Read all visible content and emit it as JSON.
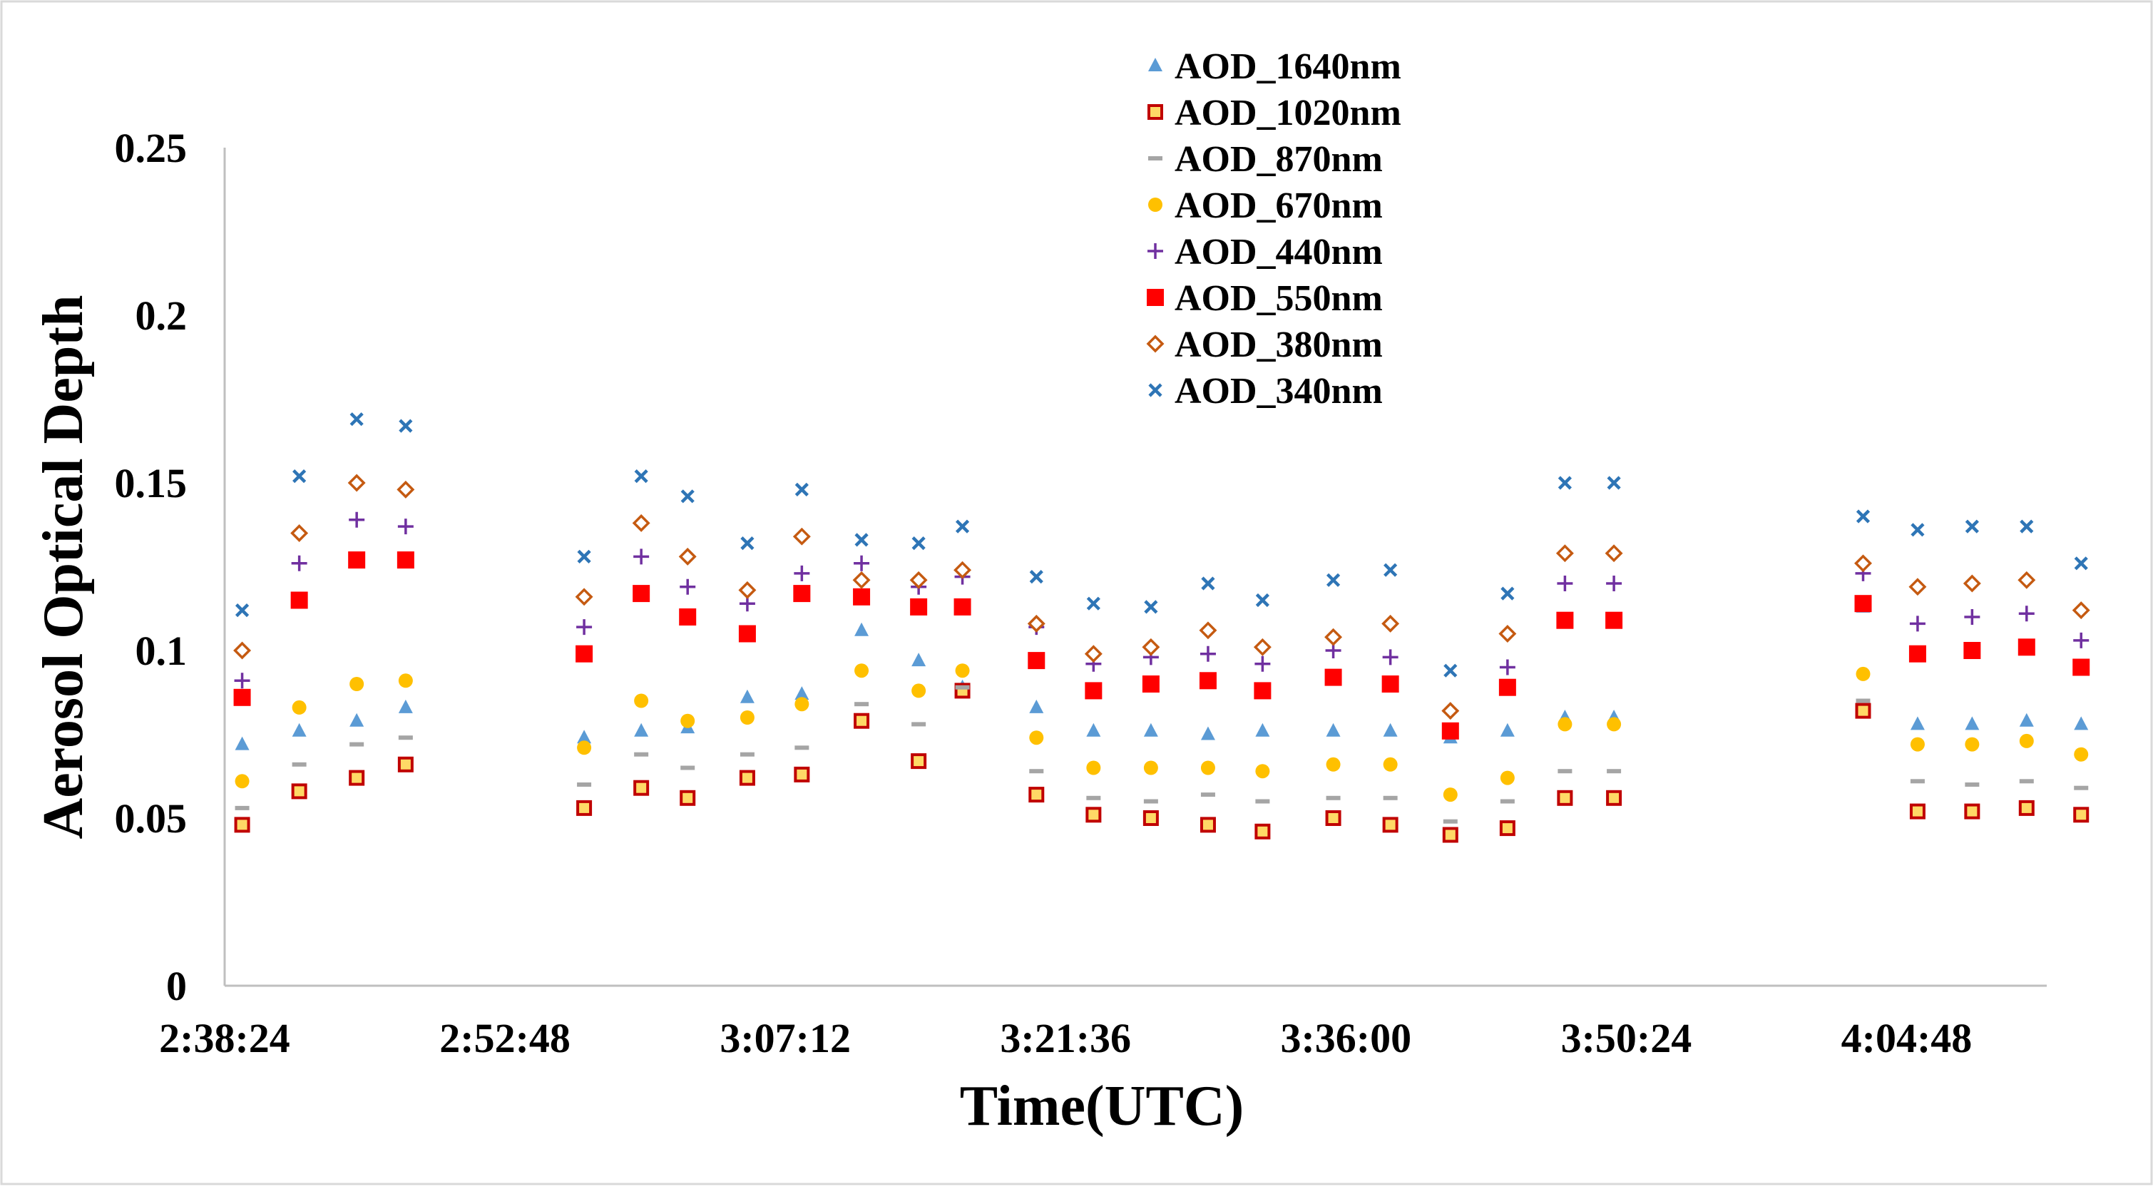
{
  "chart_data": {
    "type": "scatter",
    "title": "",
    "xlabel": "Time(UTC)",
    "ylabel": "Aerosol Optical Depth",
    "x_unit": "seconds_of_day",
    "xlim": [
      9504,
      15120
    ],
    "ylim": [
      0,
      0.25
    ],
    "x_ticks": [
      {
        "value": 9504,
        "label": "2:38:24"
      },
      {
        "value": 10368,
        "label": "2:52:48"
      },
      {
        "value": 11232,
        "label": "3:07:12"
      },
      {
        "value": 12096,
        "label": "3:21:36"
      },
      {
        "value": 12960,
        "label": "3:36:00"
      },
      {
        "value": 13824,
        "label": "3:50:24"
      },
      {
        "value": 14688,
        "label": "4:04:48"
      }
    ],
    "y_ticks": [
      {
        "value": 0,
        "label": "0"
      },
      {
        "value": 0.05,
        "label": "0.05"
      },
      {
        "value": 0.1,
        "label": "0.1"
      },
      {
        "value": 0.15,
        "label": "0.15"
      },
      {
        "value": 0.2,
        "label": "0.2"
      },
      {
        "value": 0.25,
        "label": "0.25"
      }
    ],
    "grid": false,
    "legend_position": "top-center",
    "x": [
      9558,
      9734,
      9911,
      10062,
      10612,
      10788,
      10931,
      11115,
      11283,
      11467,
      11643,
      11778,
      12006,
      12182,
      12359,
      12535,
      12703,
      12921,
      13097,
      13282,
      13458,
      13635,
      13786,
      14554,
      14722,
      14890,
      15058,
      15226
    ],
    "series": [
      {
        "name": "AOD_1640nm",
        "marker": "triangle",
        "color": "#5B9BD5",
        "values": [
          0.072,
          0.076,
          0.079,
          0.083,
          0.074,
          0.076,
          0.077,
          0.086,
          0.087,
          0.106,
          0.097,
          0.089,
          0.083,
          0.076,
          0.076,
          0.075,
          0.076,
          0.076,
          0.076,
          0.074,
          0.076,
          0.08,
          0.08,
          0.113,
          0.078,
          0.078,
          0.079,
          0.078
        ]
      },
      {
        "name": "AOD_1020nm",
        "marker": "square-open",
        "color": "#C00000",
        "values": [
          0.048,
          0.058,
          0.062,
          0.066,
          0.053,
          0.059,
          0.056,
          0.062,
          0.063,
          0.079,
          0.067,
          0.088,
          0.057,
          0.051,
          0.05,
          0.048,
          0.046,
          0.05,
          0.048,
          0.045,
          0.047,
          0.056,
          0.056,
          0.082,
          0.052,
          0.052,
          0.053,
          0.051
        ]
      },
      {
        "name": "AOD_870nm",
        "marker": "dash",
        "color": "#A5A5A5",
        "values": [
          0.053,
          0.066,
          0.072,
          0.074,
          0.06,
          0.069,
          0.065,
          0.069,
          0.071,
          0.084,
          0.078,
          0.089,
          0.064,
          0.056,
          0.055,
          0.057,
          0.055,
          0.056,
          0.056,
          0.049,
          0.055,
          0.064,
          0.064,
          0.085,
          0.061,
          0.06,
          0.061,
          0.059
        ]
      },
      {
        "name": "AOD_670nm",
        "marker": "circle",
        "color": "#FFC000",
        "values": [
          0.061,
          0.083,
          0.09,
          0.091,
          0.071,
          0.085,
          0.079,
          0.08,
          0.084,
          0.094,
          0.088,
          0.094,
          0.074,
          0.065,
          0.065,
          0.065,
          0.064,
          0.066,
          0.066,
          0.057,
          0.062,
          0.078,
          0.078,
          0.093,
          0.072,
          0.072,
          0.073,
          0.069
        ]
      },
      {
        "name": "AOD_440nm",
        "marker": "plus",
        "color": "#7030A0",
        "values": [
          0.091,
          0.126,
          0.139,
          0.137,
          0.107,
          0.128,
          0.119,
          0.114,
          0.123,
          0.126,
          0.119,
          0.122,
          0.107,
          0.096,
          0.098,
          0.099,
          0.096,
          0.1,
          0.098,
          0.082,
          0.095,
          0.12,
          0.12,
          0.123,
          0.108,
          0.11,
          0.111,
          0.103
        ]
      },
      {
        "name": "AOD_550nm",
        "marker": "square",
        "color": "#FF0000",
        "values": [
          0.086,
          0.115,
          0.127,
          0.127,
          0.099,
          0.117,
          0.11,
          0.105,
          0.117,
          0.116,
          0.113,
          0.113,
          0.097,
          0.088,
          0.09,
          0.091,
          0.088,
          0.092,
          0.09,
          0.076,
          0.089,
          0.109,
          0.109,
          0.114,
          0.099,
          0.1,
          0.101,
          0.095
        ]
      },
      {
        "name": "AOD_380nm",
        "marker": "diamond-open",
        "color": "#C55A11",
        "values": [
          0.1,
          0.135,
          0.15,
          0.148,
          0.116,
          0.138,
          0.128,
          0.118,
          0.134,
          0.121,
          0.121,
          0.124,
          0.108,
          0.099,
          0.101,
          0.106,
          0.101,
          0.104,
          0.108,
          0.082,
          0.105,
          0.129,
          0.129,
          0.126,
          0.119,
          0.12,
          0.121,
          0.112
        ]
      },
      {
        "name": "AOD_340nm",
        "marker": "x",
        "color": "#2E75B6",
        "values": [
          0.112,
          0.152,
          0.169,
          0.167,
          0.128,
          0.152,
          0.146,
          0.132,
          0.148,
          0.133,
          0.132,
          0.137,
          0.122,
          0.114,
          0.113,
          0.12,
          0.115,
          0.121,
          0.124,
          0.094,
          0.117,
          0.15,
          0.15,
          0.14,
          0.136,
          0.137,
          0.137,
          0.126
        ]
      }
    ]
  }
}
